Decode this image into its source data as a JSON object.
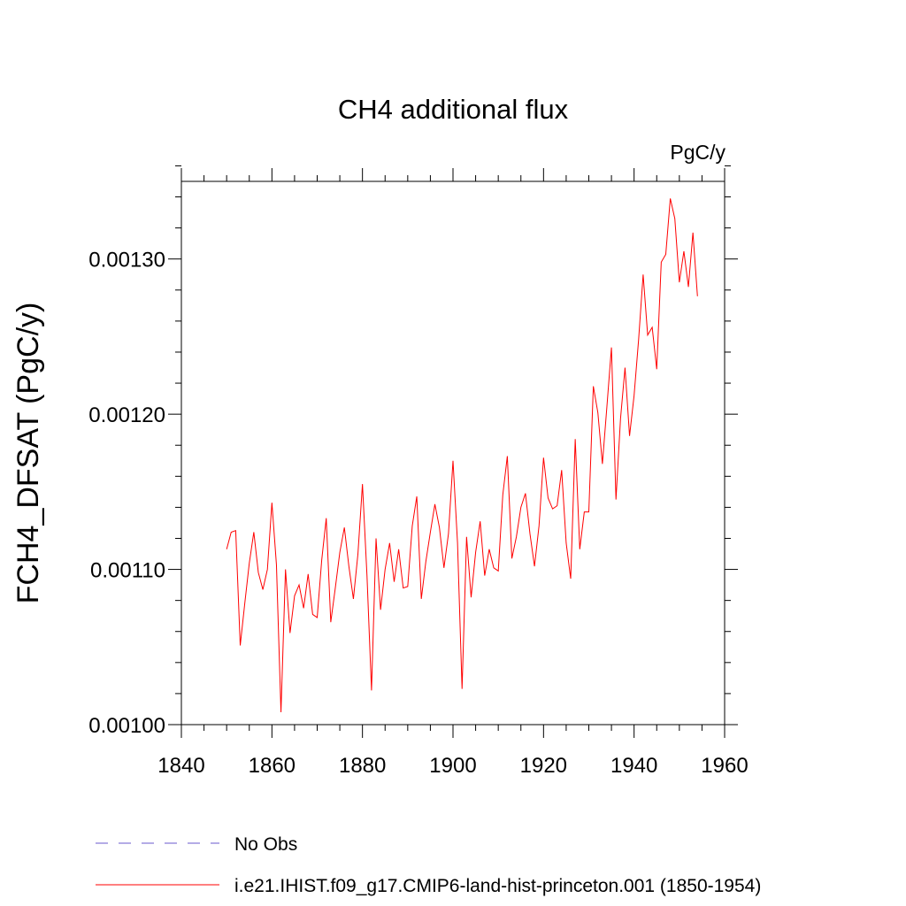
{
  "chart_data": {
    "type": "line",
    "title": "CH4 additional flux",
    "units_label": "PgC/y",
    "ylabel": "FCH4_DFSAT  (PgC/y)",
    "xlabel": "",
    "xlim": [
      1840,
      1960
    ],
    "ylim": [
      0.001,
      0.00135
    ],
    "x_ticks": [
      1840,
      1860,
      1880,
      1900,
      1920,
      1940,
      1960
    ],
    "x_tick_labels": [
      "1840",
      "1860",
      "1880",
      "1900",
      "1920",
      "1940",
      "1960"
    ],
    "y_ticks": [
      0.001,
      0.0011,
      0.0012,
      0.0013
    ],
    "y_tick_labels": [
      "0.00100",
      "0.00110",
      "0.00120",
      "0.00130"
    ],
    "grid": false,
    "legend_position": "bottom",
    "series": [
      {
        "name": "No Obs",
        "color": "#6a5acd",
        "dash": "dashed",
        "x": [],
        "values": []
      },
      {
        "name": "i.e21.IHIST.f09_g17.CMIP6-land-hist-princeton.001 (1850-1954)",
        "color": "#ff0000",
        "dash": "solid",
        "x": [
          1850,
          1851,
          1852,
          1853,
          1854,
          1855,
          1856,
          1857,
          1858,
          1859,
          1860,
          1861,
          1862,
          1863,
          1864,
          1865,
          1866,
          1867,
          1868,
          1869,
          1870,
          1871,
          1872,
          1873,
          1874,
          1875,
          1876,
          1877,
          1878,
          1879,
          1880,
          1881,
          1882,
          1883,
          1884,
          1885,
          1886,
          1887,
          1888,
          1889,
          1890,
          1891,
          1892,
          1893,
          1894,
          1895,
          1896,
          1897,
          1898,
          1899,
          1900,
          1901,
          1902,
          1903,
          1904,
          1905,
          1906,
          1907,
          1908,
          1909,
          1910,
          1911,
          1912,
          1913,
          1914,
          1915,
          1916,
          1917,
          1918,
          1919,
          1920,
          1921,
          1922,
          1923,
          1924,
          1925,
          1926,
          1927,
          1928,
          1929,
          1930,
          1931,
          1932,
          1933,
          1934,
          1935,
          1936,
          1937,
          1938,
          1939,
          1940,
          1941,
          1942,
          1943,
          1944,
          1945,
          1946,
          1947,
          1948,
          1949,
          1950,
          1951,
          1952,
          1953,
          1954
        ],
        "values": [
          0.001113,
          0.001124,
          0.001125,
          0.001051,
          0.001078,
          0.001104,
          0.001124,
          0.001098,
          0.001087,
          0.0011,
          0.001143,
          0.001103,
          0.001008,
          0.0011,
          0.001059,
          0.001083,
          0.00109,
          0.001075,
          0.001097,
          0.001071,
          0.001069,
          0.001106,
          0.001133,
          0.001066,
          0.001088,
          0.001111,
          0.001127,
          0.001102,
          0.001081,
          0.00111,
          0.001155,
          0.001096,
          0.001022,
          0.00112,
          0.001074,
          0.0011,
          0.001117,
          0.001092,
          0.001113,
          0.001088,
          0.001089,
          0.001128,
          0.001147,
          0.001081,
          0.001105,
          0.001124,
          0.001142,
          0.001127,
          0.001101,
          0.001123,
          0.00117,
          0.001117,
          0.001023,
          0.001121,
          0.001082,
          0.001111,
          0.001131,
          0.001096,
          0.001113,
          0.001101,
          0.001099,
          0.001148,
          0.001173,
          0.001107,
          0.001121,
          0.00114,
          0.001149,
          0.001123,
          0.001102,
          0.001128,
          0.001172,
          0.001146,
          0.001139,
          0.001141,
          0.001164,
          0.001117,
          0.001094,
          0.001184,
          0.001113,
          0.001137,
          0.001137,
          0.001218,
          0.001201,
          0.001168,
          0.001205,
          0.001243,
          0.001145,
          0.001197,
          0.00123,
          0.001186,
          0.001212,
          0.001248,
          0.00129,
          0.001251,
          0.001256,
          0.001229,
          0.001298,
          0.001303,
          0.001339,
          0.001326,
          0.001285,
          0.001305,
          0.001282,
          0.001317,
          0.001276
        ]
      }
    ]
  }
}
